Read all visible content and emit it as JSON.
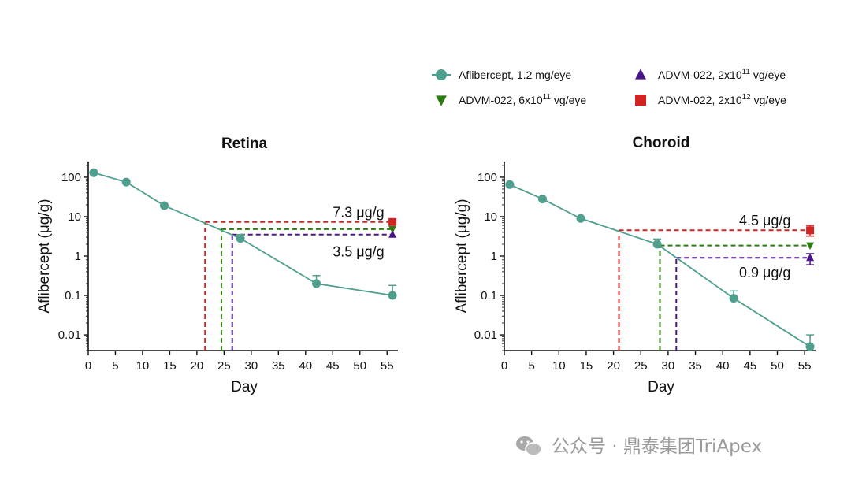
{
  "legend": {
    "items": [
      {
        "marker": "circle",
        "color": "#4f9f8f",
        "parts": [
          "Aflibercept, 1.2 mg/eye"
        ]
      },
      {
        "marker": "triangle-up",
        "color": "#4b148a",
        "parts": [
          "ADVM-022, 2x10",
          "11",
          " vg/eye"
        ]
      },
      {
        "marker": "triangle-down",
        "color": "#2e7d10",
        "parts": [
          "ADVM-022, 6x10",
          "11",
          " vg/eye"
        ]
      },
      {
        "marker": "square",
        "color": "#d32222",
        "parts": [
          "ADVM-022, 2x10",
          "12",
          " vg/eye"
        ]
      }
    ]
  },
  "watermark": {
    "text": "公众号 · 鼎泰集团TriApex"
  },
  "chart_data": [
    {
      "type": "line",
      "title": "Retina",
      "xlabel": "Day",
      "ylabel_parts": [
        "Aflibercept (",
        "μ",
        "g/g)"
      ],
      "yscale": "log",
      "xlim": [
        0,
        57
      ],
      "ylim": [
        0.004,
        250
      ],
      "xticks": [
        0,
        5,
        10,
        15,
        20,
        25,
        30,
        35,
        40,
        45,
        50,
        55
      ],
      "yticks": [
        0.01,
        0.1,
        1,
        10,
        100
      ],
      "ytick_labels": [
        "0.01",
        "0.1",
        "1",
        "10",
        "100"
      ],
      "series": [
        {
          "name": "Aflibercept, 1.2 mg/eye",
          "marker": "circle",
          "color": "#4f9f8f",
          "x": [
            1,
            7,
            14,
            28,
            42,
            56
          ],
          "y": [
            130,
            75,
            19,
            2.8,
            0.2,
            0.1
          ],
          "err_high": [
            null,
            null,
            null,
            3.5,
            0.32,
            0.18
          ]
        },
        {
          "name": "ADVM-022, 2x10^12 vg/eye",
          "marker": "square",
          "color": "#d32222",
          "x": [
            56
          ],
          "y": [
            7.3
          ]
        },
        {
          "name": "ADVM-022, 6x10^11 vg/eye",
          "marker": "triangle-down",
          "color": "#2e7d10",
          "x": [
            56
          ],
          "y": [
            4.8
          ]
        },
        {
          "name": "ADVM-022, 2x10^11 vg/eye",
          "marker": "triangle-up",
          "color": "#4b148a",
          "x": [
            56
          ],
          "y": [
            3.5
          ]
        }
      ],
      "reference_lines": [
        {
          "color": "#d32222",
          "y": 7.3,
          "x_from": 21.5,
          "x_to": 56
        },
        {
          "color": "#2e7d10",
          "y": 4.8,
          "x_from": 24.5,
          "x_to": 56
        },
        {
          "color": "#4b148a",
          "y": 3.5,
          "x_from": 26.5,
          "x_to": 56
        }
      ],
      "annotations": [
        {
          "text": "7.3 μg/g",
          "x": 45,
          "y": 13
        },
        {
          "text": "3.5 μg/g",
          "x": 45,
          "y": 1.3
        }
      ]
    },
    {
      "type": "line",
      "title": "Choroid",
      "xlabel": "Day",
      "ylabel_parts": [
        "Aflibercept (",
        "μ",
        "g/g)"
      ],
      "yscale": "log",
      "xlim": [
        0,
        57
      ],
      "ylim": [
        0.004,
        250
      ],
      "xticks": [
        0,
        5,
        10,
        15,
        20,
        25,
        30,
        35,
        40,
        45,
        50,
        55
      ],
      "yticks": [
        0.01,
        0.1,
        1,
        10,
        100
      ],
      "ytick_labels": [
        "0.01",
        "0.1",
        "1",
        "10",
        "100"
      ],
      "series": [
        {
          "name": "Aflibercept, 1.2 mg/eye",
          "marker": "circle",
          "color": "#4f9f8f",
          "x": [
            1,
            7,
            14,
            28,
            42,
            56
          ],
          "y": [
            65,
            28,
            9,
            2,
            0.085,
            0.005
          ],
          "err_high": [
            null,
            null,
            null,
            2.7,
            0.13,
            0.01
          ]
        },
        {
          "name": "ADVM-022, 2x10^12 vg/eye",
          "marker": "square",
          "color": "#d32222",
          "x": [
            56
          ],
          "y": [
            4.5
          ],
          "err_high": [
            6
          ],
          "err_low": [
            3.2
          ]
        },
        {
          "name": "ADVM-022, 6x10^11 vg/eye",
          "marker": "triangle-down",
          "color": "#2e7d10",
          "x": [
            56
          ],
          "y": [
            1.85
          ]
        },
        {
          "name": "ADVM-022, 2x10^11 vg/eye",
          "marker": "triangle-up",
          "color": "#4b148a",
          "x": [
            56
          ],
          "y": [
            0.9
          ],
          "err_high": [
            1.15
          ],
          "err_low": [
            0.6
          ]
        }
      ],
      "reference_lines": [
        {
          "color": "#d32222",
          "y": 4.5,
          "x_from": 21,
          "x_to": 56
        },
        {
          "color": "#2e7d10",
          "y": 1.85,
          "x_from": 28.5,
          "x_to": 56
        },
        {
          "color": "#4b148a",
          "y": 0.9,
          "x_from": 31.5,
          "x_to": 56
        }
      ],
      "annotations": [
        {
          "text": "4.5 μg/g",
          "x": 43,
          "y": 8
        },
        {
          "text": "0.9 μg/g",
          "x": 43,
          "y": 0.38
        }
      ]
    }
  ]
}
